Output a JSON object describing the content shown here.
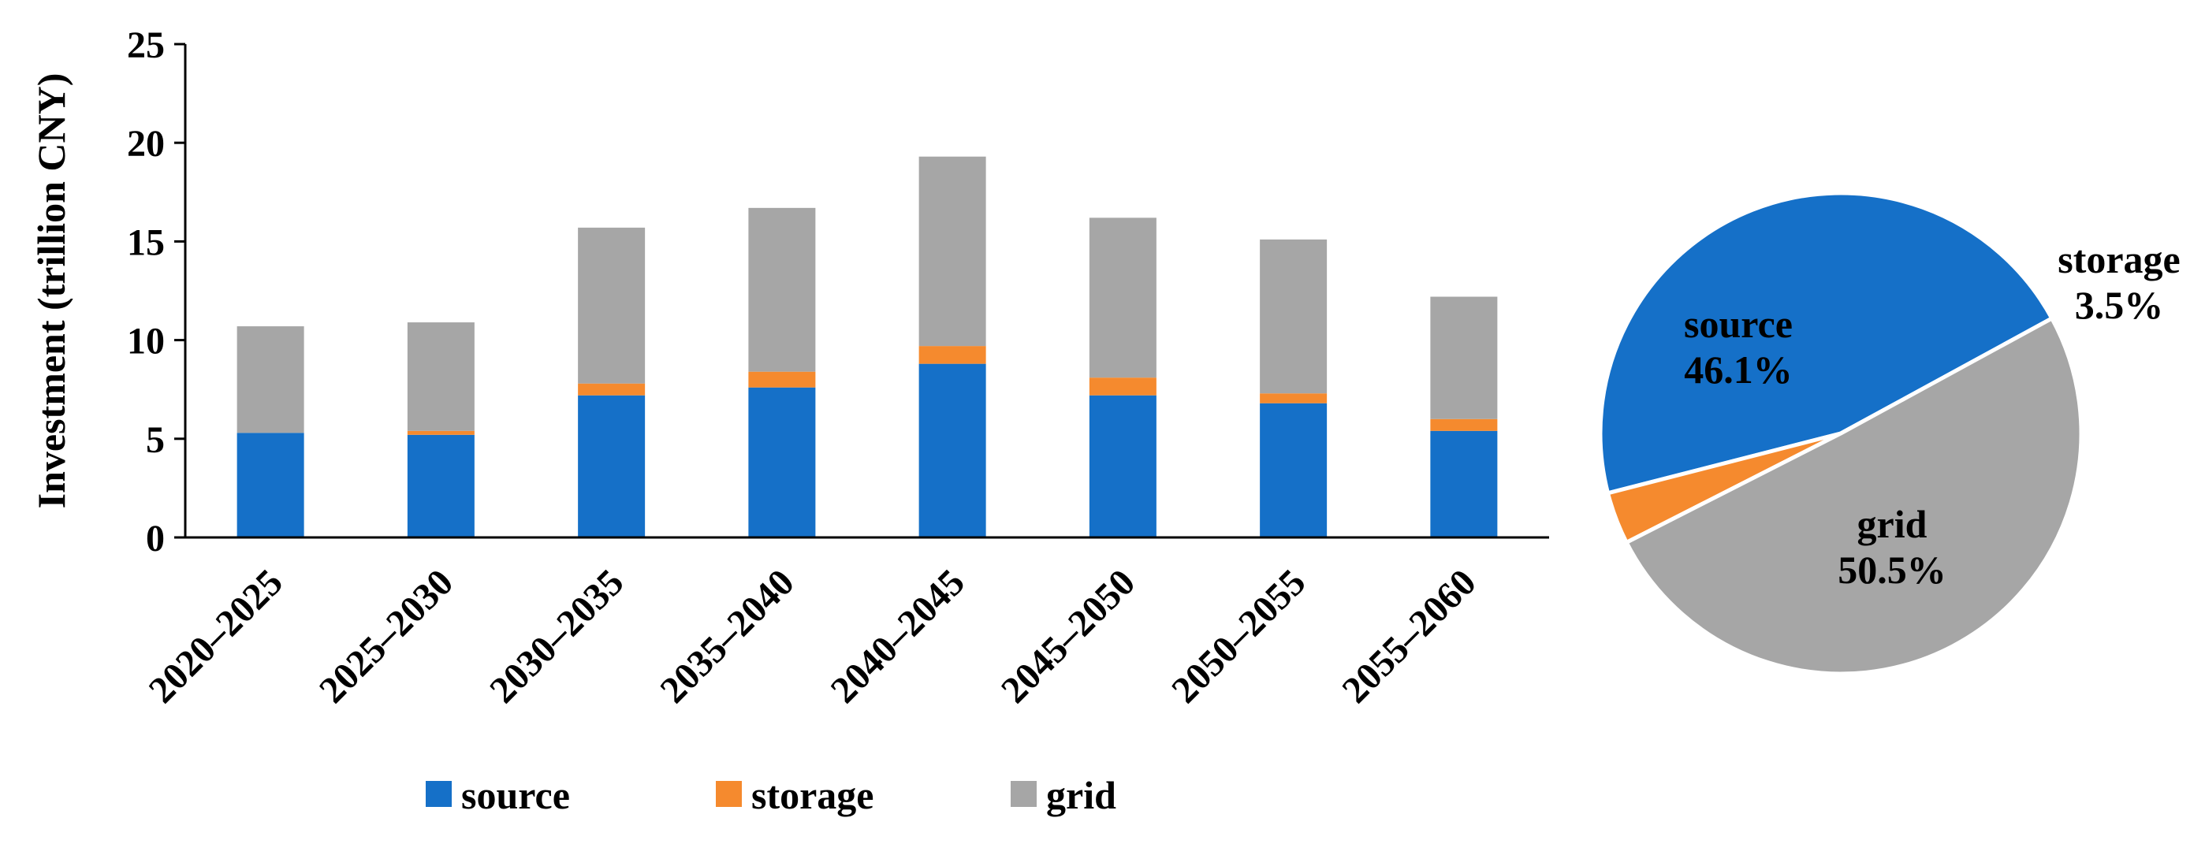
{
  "chart_data": [
    {
      "type": "bar",
      "stacked": true,
      "title": "",
      "xlabel": "",
      "ylabel": "Investment (trillion CNY)",
      "ylim": [
        0,
        25
      ],
      "yticks": [
        "0",
        "5",
        "10",
        "15",
        "20",
        "25"
      ],
      "grid": false,
      "legend_position": "bottom",
      "categories": [
        "2020–2025",
        "2025–2030",
        "2030–2035",
        "2035–2040",
        "2040–2045",
        "2045–2050",
        "2050–2055",
        "2055–2060"
      ],
      "series": [
        {
          "name": "source",
          "color": "#1570C8",
          "values": [
            5.3,
            5.2,
            7.2,
            7.6,
            8.8,
            7.2,
            6.8,
            5.4
          ]
        },
        {
          "name": "storage",
          "color": "#F58A2E",
          "values": [
            0.0,
            0.2,
            0.6,
            0.8,
            0.9,
            0.9,
            0.5,
            0.6
          ]
        },
        {
          "name": "grid",
          "color": "#A6A6A6",
          "values": [
            5.4,
            5.5,
            7.9,
            8.3,
            9.6,
            8.1,
            7.8,
            6.2
          ]
        }
      ]
    },
    {
      "type": "pie",
      "title": "",
      "slices": [
        {
          "name": "source",
          "percent_label": "46.1%",
          "value": 46.1,
          "color": "#1570C8"
        },
        {
          "name": "storage",
          "percent_label": "3.5%",
          "value": 3.5,
          "color": "#F58A2E"
        },
        {
          "name": "grid",
          "percent_label": "50.5%",
          "value": 50.5,
          "color": "#A6A6A6"
        }
      ]
    }
  ]
}
